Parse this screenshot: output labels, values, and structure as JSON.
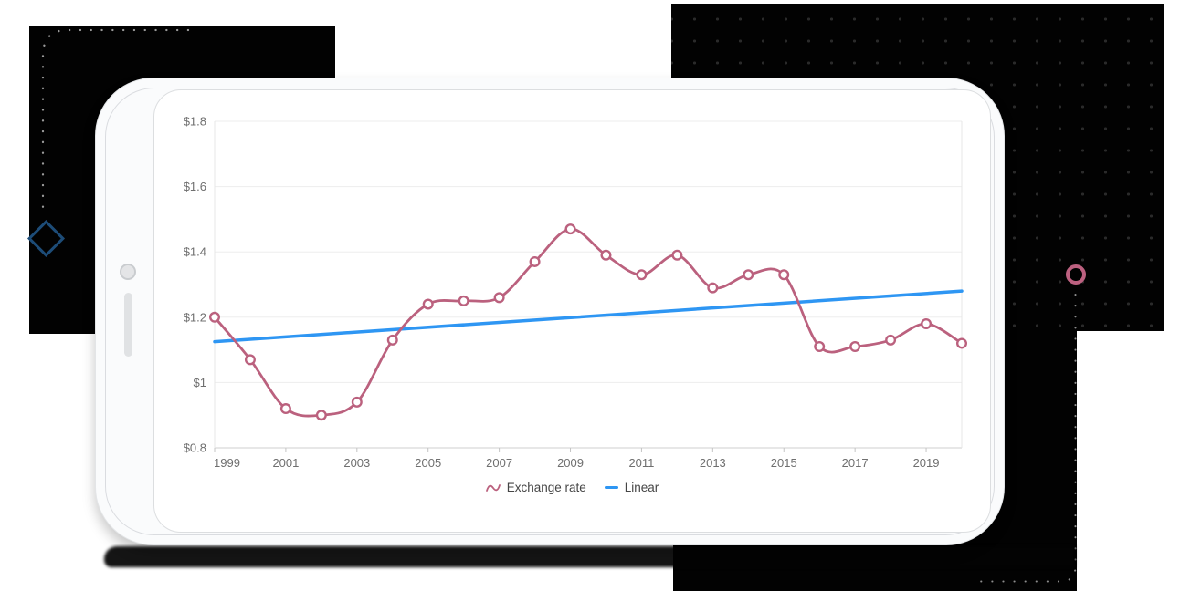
{
  "palette": {
    "panel_black": "#020202",
    "dot_grid_gray": "#2a2a2a",
    "deco_dot_gray": "#9a9a9a",
    "diamond_blue": "#1d4c78",
    "ring_rose": "#bd6180",
    "grid_line": "#ededed",
    "axis_line": "#cfcfcf",
    "tick_text": "#6f6f6f",
    "legend_text": "#454545"
  },
  "chart_data": {
    "type": "line",
    "title": "",
    "xlabel": "",
    "ylabel": "",
    "x": [
      1999,
      2000,
      2001,
      2002,
      2003,
      2004,
      2005,
      2006,
      2007,
      2008,
      2009,
      2010,
      2011,
      2012,
      2013,
      2014,
      2015,
      2016,
      2017,
      2018,
      2019,
      2020
    ],
    "series": [
      {
        "name": "Exchange rate",
        "type": "spline",
        "color": "#bb617e",
        "marker": "hollow-circle",
        "values": [
          1.2,
          1.07,
          0.92,
          0.9,
          0.94,
          1.13,
          1.24,
          1.25,
          1.26,
          1.37,
          1.47,
          1.39,
          1.33,
          1.39,
          1.29,
          1.33,
          1.33,
          1.11,
          1.11,
          1.13,
          1.18,
          1.12
        ]
      },
      {
        "name": "Linear",
        "type": "trendline",
        "color": "#2e96f3",
        "start_value": 1.125,
        "end_value": 1.28
      }
    ],
    "ylim": [
      0.8,
      1.8
    ],
    "yticks": [
      {
        "value": 0.8,
        "label": "$0.8"
      },
      {
        "value": 1.0,
        "label": "$1"
      },
      {
        "value": 1.2,
        "label": "$1.2"
      },
      {
        "value": 1.4,
        "label": "$1.4"
      },
      {
        "value": 1.6,
        "label": "$1.6"
      },
      {
        "value": 1.8,
        "label": "$1.8"
      }
    ],
    "xticks": [
      1999,
      2001,
      2003,
      2005,
      2007,
      2009,
      2011,
      2013,
      2015,
      2017,
      2019
    ],
    "grid": "horizontal",
    "legend_position": "bottom"
  }
}
